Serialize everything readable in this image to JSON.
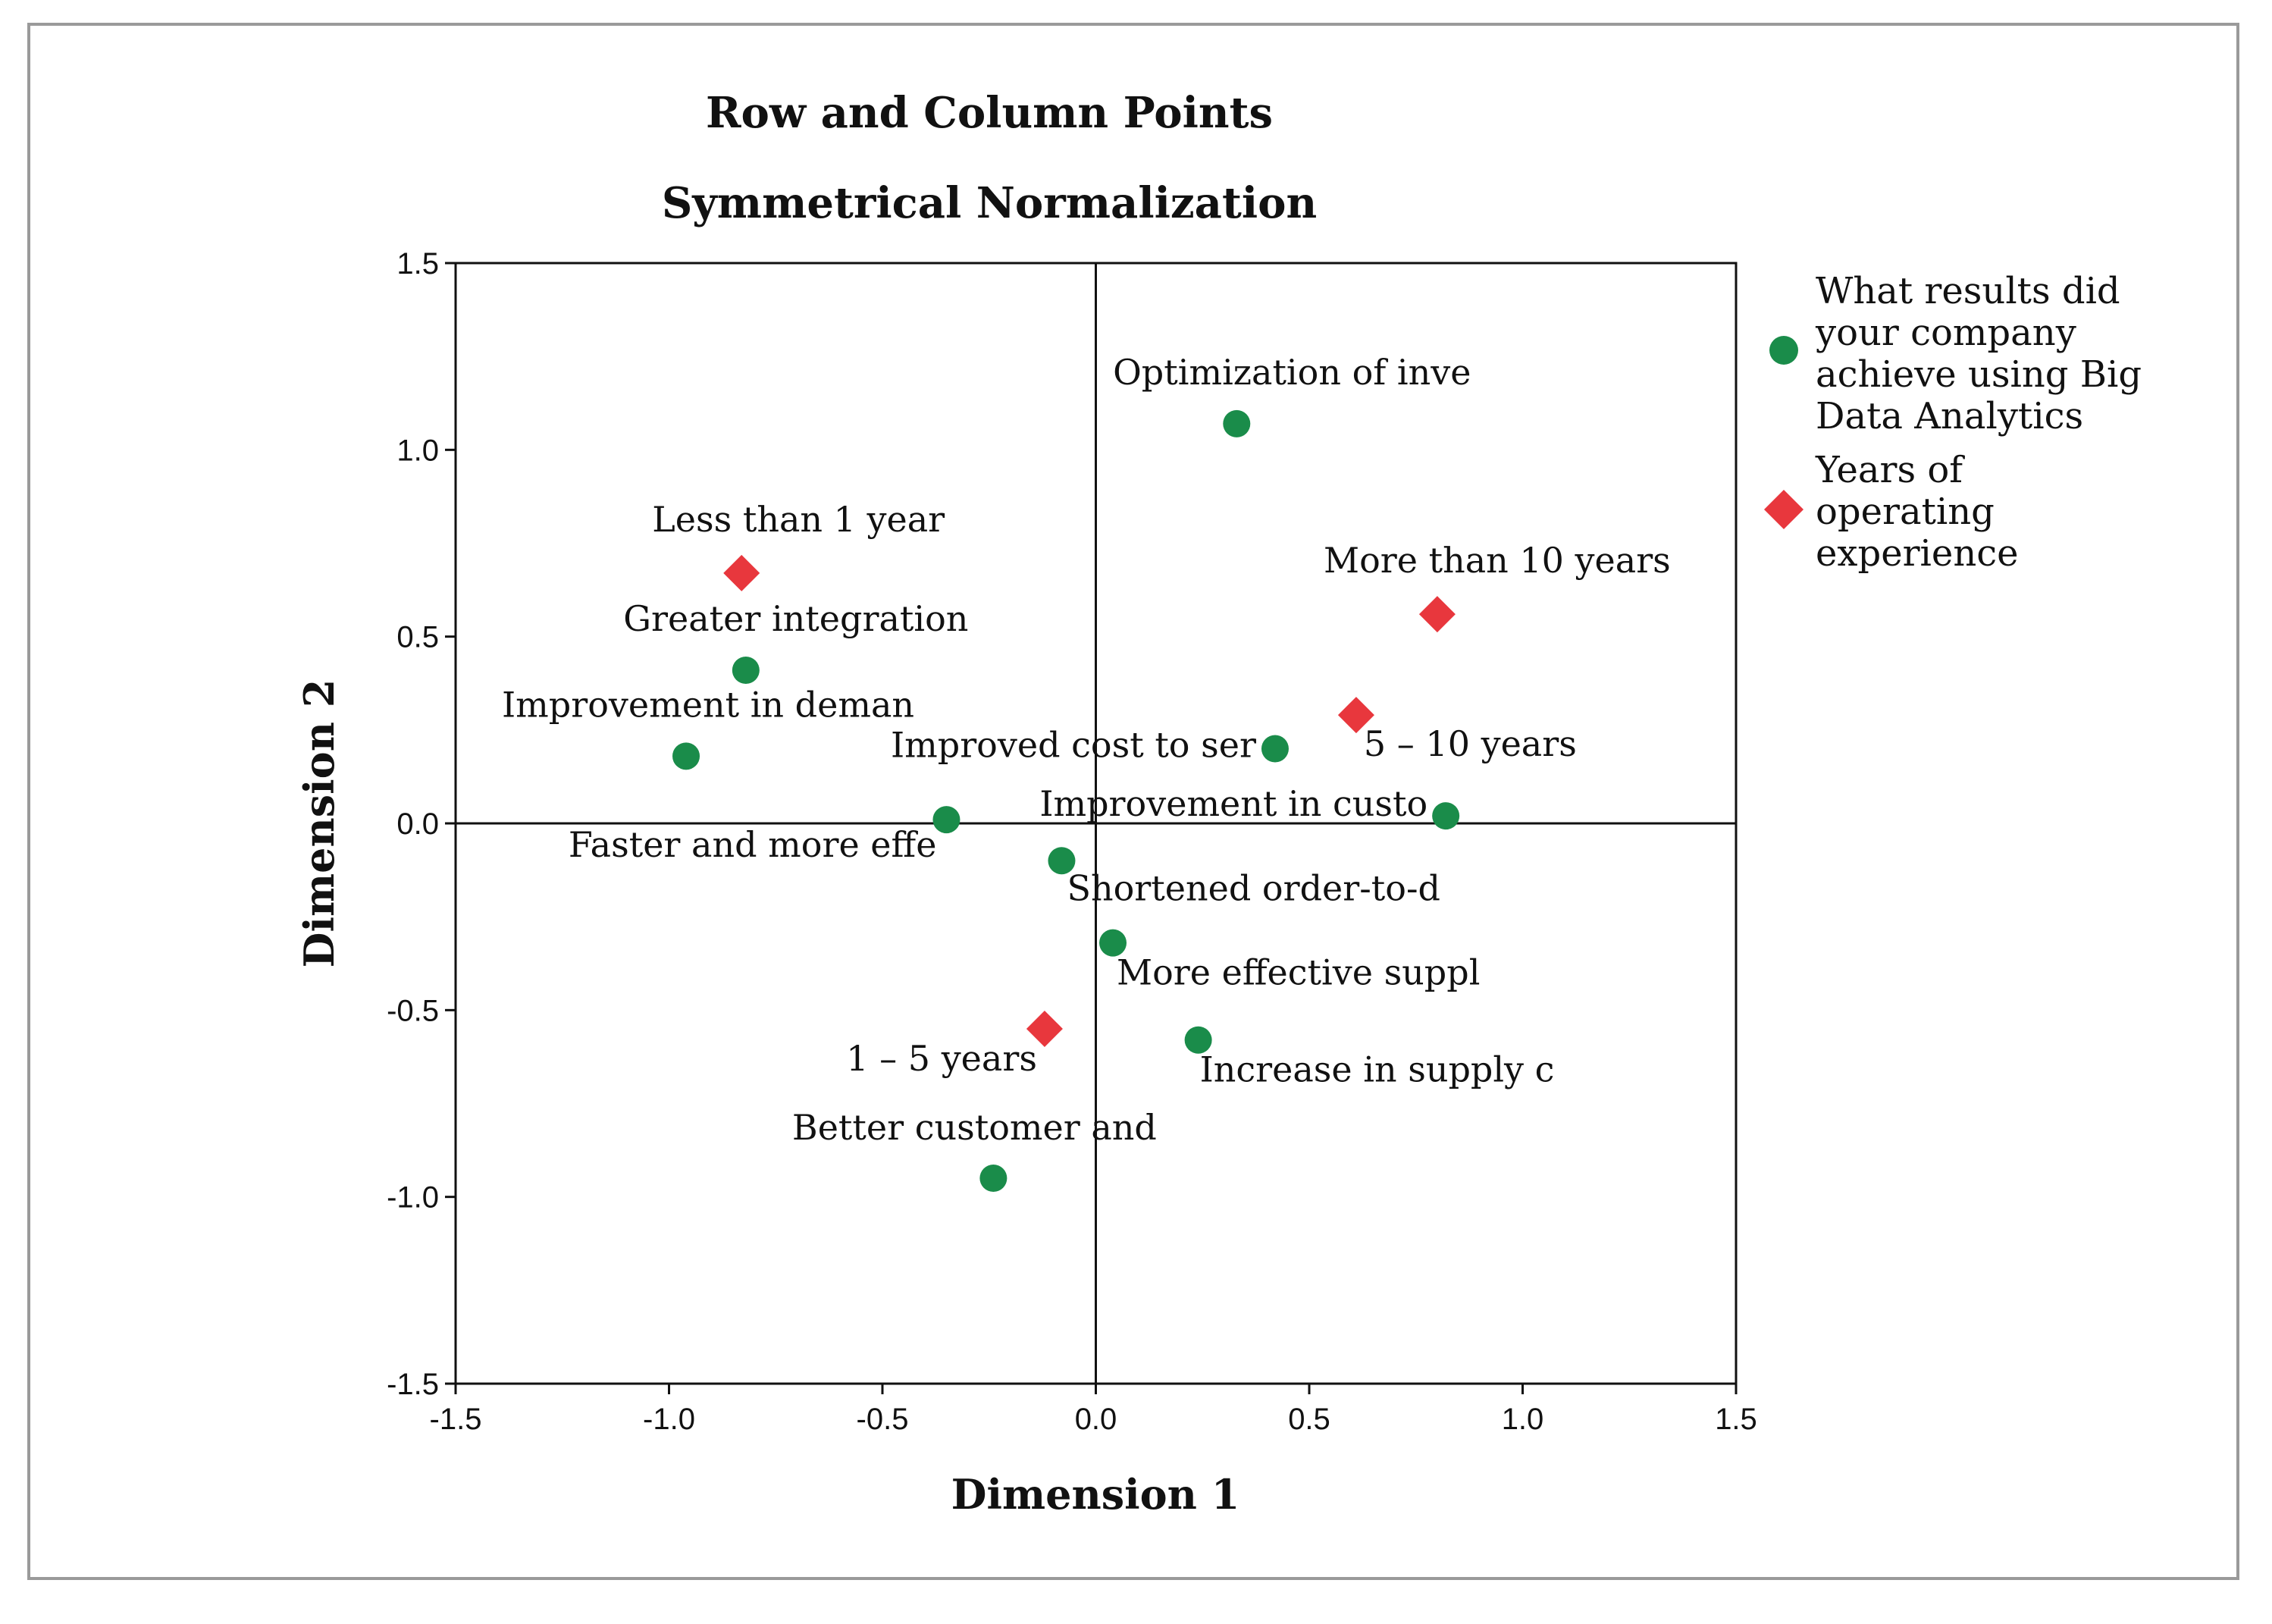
{
  "chart_data": {
    "type": "scatter",
    "title": "Row and Column Points",
    "subtitle": "Symmetrical Normalization",
    "xlabel": "Dimension 1",
    "ylabel": "Dimension 2",
    "xlim": [
      -1.5,
      1.5
    ],
    "ylim": [
      -1.5,
      1.5
    ],
    "xticks": [
      "-1.5",
      "-1.0",
      "-0.5",
      "0.0",
      "0.5",
      "1.0",
      "1.5"
    ],
    "yticks": [
      "1.5",
      "1.0",
      "0.5",
      "0.0",
      "-0.5",
      "-1.0",
      "-1.5"
    ],
    "xtick_values": [
      -1.5,
      -1.0,
      -0.5,
      0.0,
      0.5,
      1.0,
      1.5
    ],
    "ytick_values": [
      1.5,
      1.0,
      0.5,
      0.0,
      -0.5,
      -1.0,
      -1.5
    ],
    "grid": false,
    "reference_lines": {
      "x": 0,
      "y": 0
    },
    "legend_position": "top-right-outside",
    "series": [
      {
        "name": "What results did your company achieve using Big Data Analytics",
        "legend_lines": [
          "What results did",
          "your company",
          "achieve using Big",
          "Data Analytics"
        ],
        "marker": "circle",
        "color": "#1a8c4a",
        "points": [
          {
            "x": 0.33,
            "y": 1.07,
            "label": "Optimization of inve"
          },
          {
            "x": -0.82,
            "y": 0.41,
            "label": "Greater integration"
          },
          {
            "x": -0.96,
            "y": 0.18,
            "label": "Improvement in deman"
          },
          {
            "x": 0.42,
            "y": 0.2,
            "label": "Improved cost to ser"
          },
          {
            "x": 0.82,
            "y": 0.02,
            "label": "Improvement in custo"
          },
          {
            "x": -0.35,
            "y": 0.01,
            "label": "Faster and more effe"
          },
          {
            "x": -0.08,
            "y": -0.1,
            "label": "Shortened order-to-d"
          },
          {
            "x": 0.04,
            "y": -0.32,
            "label": "More effective suppl"
          },
          {
            "x": 0.24,
            "y": -0.58,
            "label": "Increase in supply c"
          },
          {
            "x": -0.24,
            "y": -0.95,
            "label": "Better customer and"
          }
        ]
      },
      {
        "name": "Years of operating experience",
        "legend_lines": [
          "Years of",
          "operating",
          "experience"
        ],
        "marker": "diamond",
        "color": "#e8373d",
        "points": [
          {
            "x": -0.83,
            "y": 0.67,
            "label": "Less than 1 year"
          },
          {
            "x": 0.8,
            "y": 0.56,
            "label": "More than 10 years"
          },
          {
            "x": 0.61,
            "y": 0.29,
            "label": "5 – 10 years"
          },
          {
            "x": -0.12,
            "y": -0.55,
            "label": "1 – 5 years"
          }
        ]
      }
    ]
  }
}
